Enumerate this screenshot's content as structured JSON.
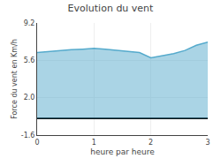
{
  "chart_data": {
    "type": "area",
    "title": "Evolution du vent",
    "x_label": "heure par heure",
    "y_label": "Force du vent en Km/h",
    "x": [
      0.0,
      0.2,
      0.4,
      0.6,
      0.8,
      1.0,
      1.2,
      1.4,
      1.6,
      1.8,
      2.0,
      2.2,
      2.4,
      2.6,
      2.8,
      3.0
    ],
    "values": [
      6.35,
      6.45,
      6.55,
      6.62,
      6.68,
      6.75,
      6.68,
      6.58,
      6.45,
      6.35,
      5.85,
      6.05,
      6.25,
      6.55,
      7.05,
      7.35
    ],
    "color": "#55aacc",
    "xlim": [
      0,
      3
    ],
    "xticks": [
      0,
      1,
      2,
      3
    ],
    "ylim": [
      -1.6,
      9.2
    ],
    "yticks": [
      -1.6,
      {
        "value": 2.0,
        "label": "2.0"
      },
      5.6,
      9.2
    ],
    "grid": true
  }
}
